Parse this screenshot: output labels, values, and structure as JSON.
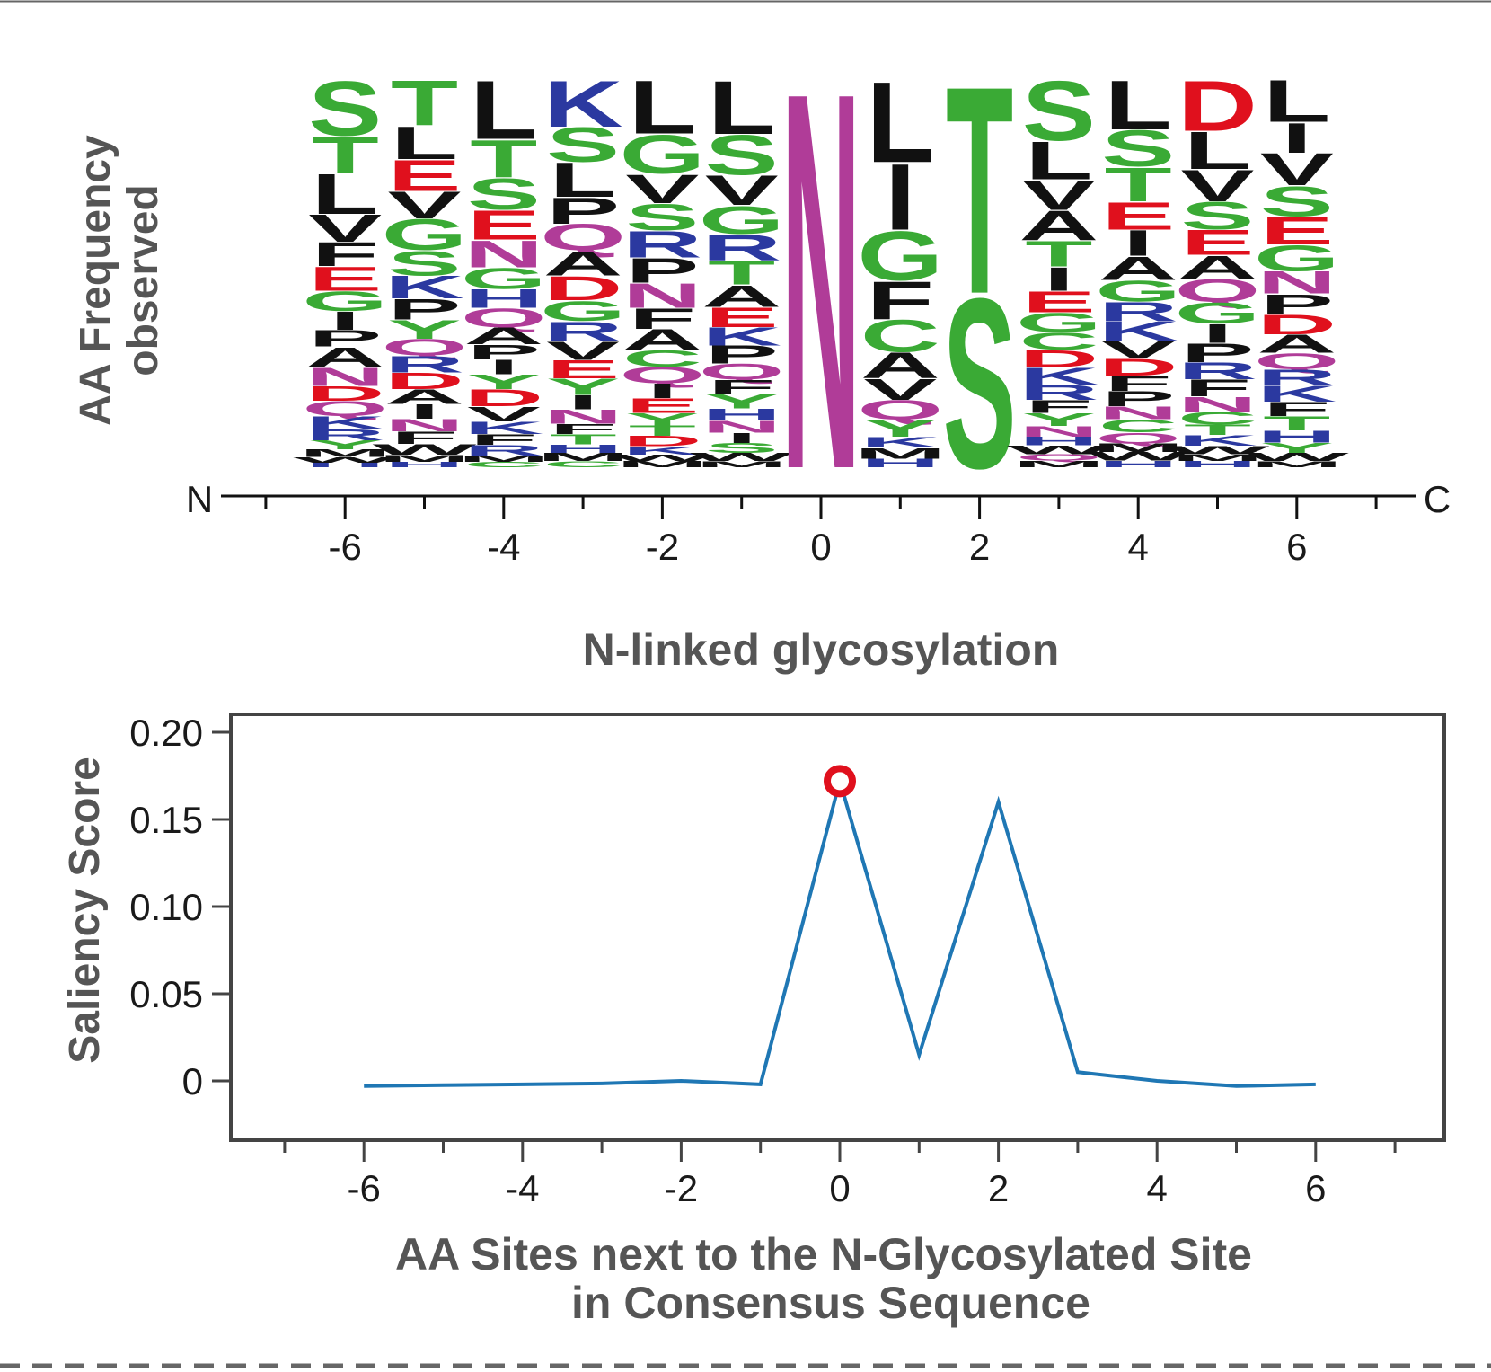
{
  "colors": {
    "hydrophobic": "#111111",
    "polar": "#3aaa35",
    "acidic": "#e0101d",
    "basic": "#2b39a0",
    "amide": "#b03c98",
    "line": "#1f77b4",
    "highlight": "#e0101d",
    "axis_text": "#555555",
    "frame": "#444444"
  },
  "chart_data": [
    {
      "type": "sequence-logo",
      "ylabel_line1": "AA Frequency",
      "ylabel_line2": "observed",
      "n_terminus_label": "N",
      "c_terminus_label": "C",
      "x_ticks": [
        -6,
        -4,
        -2,
        0,
        2,
        4,
        6
      ],
      "xlim": [
        -7.5,
        7.5
      ],
      "positions": [
        {
          "pos": -6,
          "letters": [
            {
              "aa": "S",
              "h": 6.0
            },
            {
              "aa": "T",
              "h": 4.0
            },
            {
              "aa": "L",
              "h": 4.4
            },
            {
              "aa": "V",
              "h": 3.0
            },
            {
              "aa": "F",
              "h": 2.6
            },
            {
              "aa": "E",
              "h": 2.6
            },
            {
              "aa": "G",
              "h": 2.2
            },
            {
              "aa": "I",
              "h": 2.0
            },
            {
              "aa": "P",
              "h": 1.8
            },
            {
              "aa": "A",
              "h": 2.2
            },
            {
              "aa": "N",
              "h": 2.0
            },
            {
              "aa": "D",
              "h": 1.6
            },
            {
              "aa": "Q",
              "h": 1.6
            },
            {
              "aa": "K",
              "h": 1.4
            },
            {
              "aa": "R",
              "h": 1.2
            },
            {
              "aa": "Y",
              "h": 1.0
            },
            {
              "aa": "M",
              "h": 0.8
            },
            {
              "aa": "W",
              "h": 0.6
            },
            {
              "aa": "H",
              "h": 0.5
            }
          ]
        },
        {
          "pos": -5,
          "letters": [
            {
              "aa": "T",
              "h": 4.4
            },
            {
              "aa": "L",
              "h": 3.2
            },
            {
              "aa": "E",
              "h": 3.0
            },
            {
              "aa": "V",
              "h": 2.6
            },
            {
              "aa": "G",
              "h": 3.0
            },
            {
              "aa": "S",
              "h": 2.4
            },
            {
              "aa": "K",
              "h": 2.2
            },
            {
              "aa": "P",
              "h": 2.0
            },
            {
              "aa": "Y",
              "h": 1.8
            },
            {
              "aa": "Q",
              "h": 1.6
            },
            {
              "aa": "R",
              "h": 1.6
            },
            {
              "aa": "D",
              "h": 1.6
            },
            {
              "aa": "A",
              "h": 1.4
            },
            {
              "aa": "I",
              "h": 1.4
            },
            {
              "aa": "N",
              "h": 1.2
            },
            {
              "aa": "F",
              "h": 1.2
            },
            {
              "aa": "W",
              "h": 1.0
            },
            {
              "aa": "M",
              "h": 0.7
            },
            {
              "aa": "H",
              "h": 0.5
            }
          ]
        },
        {
          "pos": -4,
          "letters": [
            {
              "aa": "L",
              "h": 5.6
            },
            {
              "aa": "T",
              "h": 3.6
            },
            {
              "aa": "S",
              "h": 3.0
            },
            {
              "aa": "E",
              "h": 2.8
            },
            {
              "aa": "N",
              "h": 2.6
            },
            {
              "aa": "G",
              "h": 2.0
            },
            {
              "aa": "H",
              "h": 1.8
            },
            {
              "aa": "Q",
              "h": 1.8
            },
            {
              "aa": "A",
              "h": 1.6
            },
            {
              "aa": "P",
              "h": 1.4
            },
            {
              "aa": "I",
              "h": 1.4
            },
            {
              "aa": "Y",
              "h": 1.4
            },
            {
              "aa": "D",
              "h": 1.6
            },
            {
              "aa": "V",
              "h": 1.4
            },
            {
              "aa": "K",
              "h": 1.2
            },
            {
              "aa": "F",
              "h": 1.0
            },
            {
              "aa": "R",
              "h": 1.0
            },
            {
              "aa": "M",
              "h": 0.6
            },
            {
              "aa": "C",
              "h": 0.5
            }
          ]
        },
        {
          "pos": -3,
          "letters": [
            {
              "aa": "K",
              "h": 4.6
            },
            {
              "aa": "S",
              "h": 3.4
            },
            {
              "aa": "L",
              "h": 3.4
            },
            {
              "aa": "P",
              "h": 2.6
            },
            {
              "aa": "Q",
              "h": 2.6
            },
            {
              "aa": "A",
              "h": 2.4
            },
            {
              "aa": "D",
              "h": 2.4
            },
            {
              "aa": "G",
              "h": 2.0
            },
            {
              "aa": "R",
              "h": 2.0
            },
            {
              "aa": "V",
              "h": 1.8
            },
            {
              "aa": "E",
              "h": 1.8
            },
            {
              "aa": "Y",
              "h": 1.6
            },
            {
              "aa": "I",
              "h": 1.4
            },
            {
              "aa": "N",
              "h": 1.4
            },
            {
              "aa": "F",
              "h": 1.0
            },
            {
              "aa": "T",
              "h": 1.0
            },
            {
              "aa": "H",
              "h": 0.8
            },
            {
              "aa": "M",
              "h": 0.8
            },
            {
              "aa": "C",
              "h": 0.6
            }
          ]
        },
        {
          "pos": -2,
          "letters": [
            {
              "aa": "L",
              "h": 5.2
            },
            {
              "aa": "G",
              "h": 3.8
            },
            {
              "aa": "V",
              "h": 2.8
            },
            {
              "aa": "S",
              "h": 2.6
            },
            {
              "aa": "R",
              "h": 2.6
            },
            {
              "aa": "P",
              "h": 2.4
            },
            {
              "aa": "N",
              "h": 2.4
            },
            {
              "aa": "F",
              "h": 2.0
            },
            {
              "aa": "A",
              "h": 2.0
            },
            {
              "aa": "C",
              "h": 1.6
            },
            {
              "aa": "Q",
              "h": 1.6
            },
            {
              "aa": "I",
              "h": 1.4
            },
            {
              "aa": "E",
              "h": 1.4
            },
            {
              "aa": "Y",
              "h": 1.2
            },
            {
              "aa": "T",
              "h": 1.0
            },
            {
              "aa": "D",
              "h": 1.0
            },
            {
              "aa": "K",
              "h": 0.8
            },
            {
              "aa": "W",
              "h": 0.6
            },
            {
              "aa": "M",
              "h": 0.6
            }
          ]
        },
        {
          "pos": -1,
          "letters": [
            {
              "aa": "L",
              "h": 5.4
            },
            {
              "aa": "S",
              "h": 4.0
            },
            {
              "aa": "V",
              "h": 3.0
            },
            {
              "aa": "G",
              "h": 2.8
            },
            {
              "aa": "R",
              "h": 2.6
            },
            {
              "aa": "T",
              "h": 2.4
            },
            {
              "aa": "A",
              "h": 2.2
            },
            {
              "aa": "E",
              "h": 2.0
            },
            {
              "aa": "K",
              "h": 1.8
            },
            {
              "aa": "P",
              "h": 1.8
            },
            {
              "aa": "Q",
              "h": 1.6
            },
            {
              "aa": "F",
              "h": 1.4
            },
            {
              "aa": "Y",
              "h": 1.4
            },
            {
              "aa": "H",
              "h": 1.2
            },
            {
              "aa": "N",
              "h": 1.2
            },
            {
              "aa": "I",
              "h": 1.0
            },
            {
              "aa": "S",
              "h": 1.0
            },
            {
              "aa": "W",
              "h": 0.8
            },
            {
              "aa": "M",
              "h": 0.6
            }
          ]
        },
        {
          "pos": 0,
          "letters": [
            {
              "aa": "N",
              "h": 40.0
            }
          ]
        },
        {
          "pos": 1,
          "letters": [
            {
              "aa": "L",
              "h": 7.6
            },
            {
              "aa": "I",
              "h": 6.2
            },
            {
              "aa": "G",
              "h": 4.6
            },
            {
              "aa": "F",
              "h": 3.6
            },
            {
              "aa": "C",
              "h": 3.0
            },
            {
              "aa": "A",
              "h": 2.4
            },
            {
              "aa": "V",
              "h": 2.0
            },
            {
              "aa": "Q",
              "h": 1.8
            },
            {
              "aa": "Y",
              "h": 1.6
            },
            {
              "aa": "K",
              "h": 1.0
            },
            {
              "aa": "M",
              "h": 1.0
            },
            {
              "aa": "H",
              "h": 0.8
            }
          ]
        },
        {
          "pos": 2,
          "letters": [
            {
              "aa": "T",
              "h": 22.0
            },
            {
              "aa": "S",
              "h": 18.0
            }
          ]
        },
        {
          "pos": 3,
          "letters": [
            {
              "aa": "S",
              "h": 5.6
            },
            {
              "aa": "L",
              "h": 3.6
            },
            {
              "aa": "V",
              "h": 2.8
            },
            {
              "aa": "A",
              "h": 2.8
            },
            {
              "aa": "T",
              "h": 2.4
            },
            {
              "aa": "I",
              "h": 2.2
            },
            {
              "aa": "E",
              "h": 2.0
            },
            {
              "aa": "G",
              "h": 1.8
            },
            {
              "aa": "C",
              "h": 1.6
            },
            {
              "aa": "D",
              "h": 1.6
            },
            {
              "aa": "K",
              "h": 1.6
            },
            {
              "aa": "R",
              "h": 1.4
            },
            {
              "aa": "F",
              "h": 1.2
            },
            {
              "aa": "Y",
              "h": 1.2
            },
            {
              "aa": "N",
              "h": 1.0
            },
            {
              "aa": "H",
              "h": 0.8
            },
            {
              "aa": "W",
              "h": 0.8
            },
            {
              "aa": "Q",
              "h": 0.6
            },
            {
              "aa": "M",
              "h": 0.6
            }
          ]
        },
        {
          "pos": 4,
          "letters": [
            {
              "aa": "L",
              "h": 4.6
            },
            {
              "aa": "S",
              "h": 3.4
            },
            {
              "aa": "T",
              "h": 3.2
            },
            {
              "aa": "E",
              "h": 2.6
            },
            {
              "aa": "I",
              "h": 2.4
            },
            {
              "aa": "A",
              "h": 2.2
            },
            {
              "aa": "G",
              "h": 2.0
            },
            {
              "aa": "R",
              "h": 1.8
            },
            {
              "aa": "K",
              "h": 1.8
            },
            {
              "aa": "V",
              "h": 1.6
            },
            {
              "aa": "D",
              "h": 1.6
            },
            {
              "aa": "F",
              "h": 1.4
            },
            {
              "aa": "P",
              "h": 1.4
            },
            {
              "aa": "N",
              "h": 1.2
            },
            {
              "aa": "C",
              "h": 1.2
            },
            {
              "aa": "Q",
              "h": 1.0
            },
            {
              "aa": "M",
              "h": 0.8
            },
            {
              "aa": "W",
              "h": 0.8
            },
            {
              "aa": "H",
              "h": 0.6
            }
          ]
        },
        {
          "pos": 5,
          "letters": [
            {
              "aa": "D",
              "h": 4.8
            },
            {
              "aa": "L",
              "h": 3.6
            },
            {
              "aa": "V",
              "h": 3.0
            },
            {
              "aa": "S",
              "h": 2.6
            },
            {
              "aa": "E",
              "h": 2.4
            },
            {
              "aa": "A",
              "h": 2.2
            },
            {
              "aa": "Q",
              "h": 2.2
            },
            {
              "aa": "G",
              "h": 2.0
            },
            {
              "aa": "I",
              "h": 1.8
            },
            {
              "aa": "P",
              "h": 1.8
            },
            {
              "aa": "R",
              "h": 1.6
            },
            {
              "aa": "F",
              "h": 1.6
            },
            {
              "aa": "N",
              "h": 1.4
            },
            {
              "aa": "C",
              "h": 1.2
            },
            {
              "aa": "T",
              "h": 1.0
            },
            {
              "aa": "K",
              "h": 1.0
            },
            {
              "aa": "W",
              "h": 0.8
            },
            {
              "aa": "M",
              "h": 0.6
            },
            {
              "aa": "H",
              "h": 0.6
            }
          ]
        },
        {
          "pos": 6,
          "letters": [
            {
              "aa": "L",
              "h": 4.2
            },
            {
              "aa": "I",
              "h": 3.0
            },
            {
              "aa": "V",
              "h": 3.2
            },
            {
              "aa": "S",
              "h": 3.0
            },
            {
              "aa": "E",
              "h": 2.8
            },
            {
              "aa": "G",
              "h": 2.6
            },
            {
              "aa": "N",
              "h": 2.2
            },
            {
              "aa": "P",
              "h": 2.0
            },
            {
              "aa": "D",
              "h": 2.0
            },
            {
              "aa": "A",
              "h": 1.8
            },
            {
              "aa": "Q",
              "h": 1.6
            },
            {
              "aa": "R",
              "h": 1.6
            },
            {
              "aa": "K",
              "h": 1.6
            },
            {
              "aa": "F",
              "h": 1.4
            },
            {
              "aa": "T",
              "h": 1.4
            },
            {
              "aa": "H",
              "h": 1.2
            },
            {
              "aa": "Y",
              "h": 1.0
            },
            {
              "aa": "W",
              "h": 0.8
            },
            {
              "aa": "M",
              "h": 0.6
            }
          ]
        }
      ]
    },
    {
      "type": "line",
      "title": "N-linked glycosylation",
      "ylabel": "Saliency Score",
      "xlabel_line1": "AA Sites next to the N-Glycosylated Site",
      "xlabel_line2": "in Consensus Sequence",
      "xlim": [
        -7.5,
        7.5
      ],
      "ylim": [
        -0.035,
        0.21
      ],
      "x_ticks": [
        -6,
        -4,
        -2,
        0,
        2,
        4,
        6
      ],
      "y_ticks": [
        0.2,
        0.15,
        0.1,
        0.05,
        0
      ],
      "y_tick_labels": [
        "0.20",
        "0.15",
        "0.10",
        "0.05",
        "0"
      ],
      "series": [
        {
          "x": [
            -6,
            -5,
            -4,
            -3,
            -2,
            -1,
            0,
            1,
            2,
            3,
            4,
            5,
            6
          ],
          "y": [
            -0.003,
            -0.0025,
            -0.002,
            -0.0015,
            0.0,
            -0.002,
            0.172,
            0.015,
            0.16,
            0.005,
            0.0,
            -0.003,
            -0.002
          ]
        }
      ],
      "highlight_point": {
        "x": 0,
        "y": 0.172
      }
    }
  ]
}
